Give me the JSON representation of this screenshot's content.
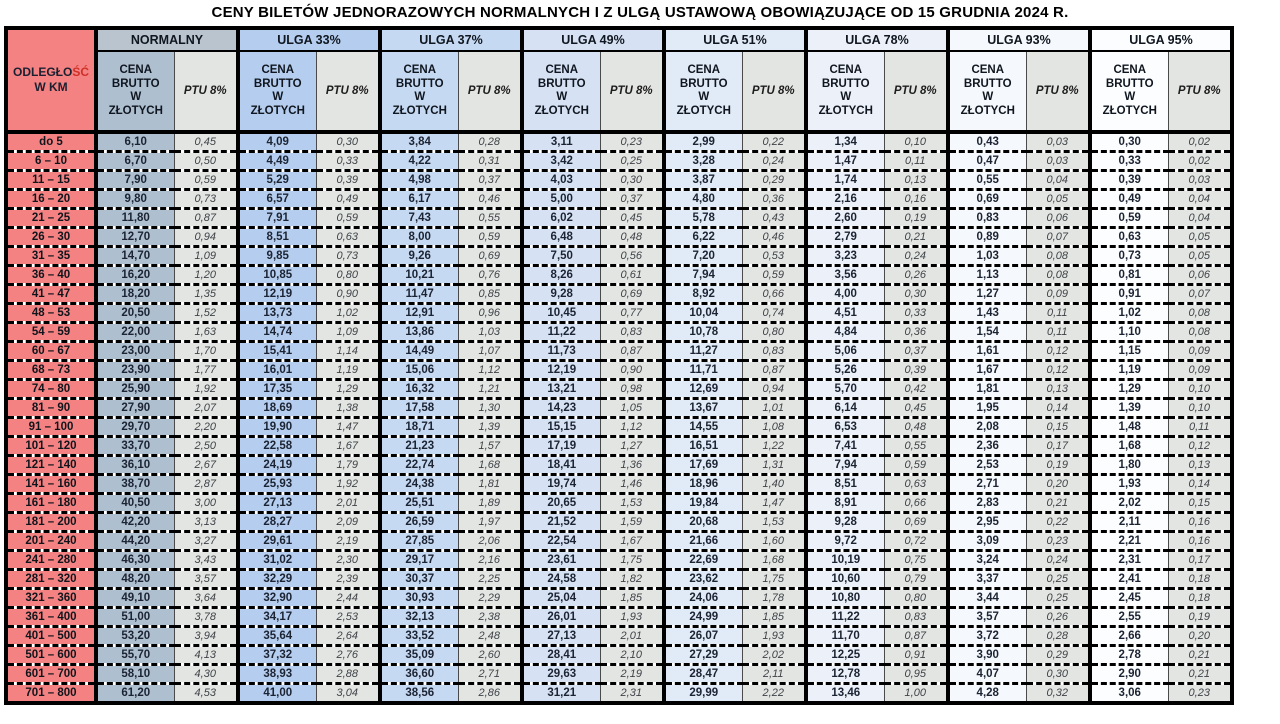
{
  "title": "CENY BILETÓW JEDNORAZOWYCH NORMALNYCH I Z ULGĄ USTAWOWĄ OBOWIĄZUJĄCE OD 15 GRUDNIA 2024 R.",
  "colors": {
    "distance_bg": "#f48282",
    "border": "#000000",
    "price_text": "#1c2433",
    "ptu_text": "#3f4348",
    "accent_red": "#d03028"
  },
  "table": {
    "distance_header": {
      "part1": "ODLEGŁO",
      "part2": "ŚĆ",
      "line2": "W KM"
    },
    "price_header": "CENA\nBRUTTO\nW\nZŁOTYCH",
    "ptu_header": "PTU 8%",
    "groups": [
      {
        "label": "NORMALNY",
        "header_bg": "#b9c4cf",
        "price_bg": "#aebfd0",
        "ptu_bg": "#e3e5e2"
      },
      {
        "label": "ULGA 33%",
        "header_bg": "#b5cdee",
        "price_bg": "#b5cdee",
        "ptu_bg": "#e3e5e2"
      },
      {
        "label": "ULGA 37%",
        "header_bg": "#c6d9f2",
        "price_bg": "#c6d9f2",
        "ptu_bg": "#e3e5e2"
      },
      {
        "label": "ULGA 49%",
        "header_bg": "#d6e2f4",
        "price_bg": "#d6e2f4",
        "ptu_bg": "#e3e5e2"
      },
      {
        "label": "ULGA 51%",
        "header_bg": "#e1eaf7",
        "price_bg": "#e1eaf7",
        "ptu_bg": "#e3e5e2"
      },
      {
        "label": "ULGA 78%",
        "header_bg": "#ecf1f9",
        "price_bg": "#ecf1f9",
        "ptu_bg": "#e3e5e2"
      },
      {
        "label": "ULGA 93%",
        "header_bg": "#f5f8fc",
        "price_bg": "#f5f8fc",
        "ptu_bg": "#e3e5e2"
      },
      {
        "label": "ULGA 95%",
        "header_bg": "#fcfdfe",
        "price_bg": "#fcfdfe",
        "ptu_bg": "#e3e5e2"
      }
    ],
    "rows": [
      {
        "d": "do 5",
        "v": [
          "6,10",
          "0,45",
          "4,09",
          "0,30",
          "3,84",
          "0,28",
          "3,11",
          "0,23",
          "2,99",
          "0,22",
          "1,34",
          "0,10",
          "0,43",
          "0,03",
          "0,30",
          "0,02"
        ]
      },
      {
        "d": "6 – 10",
        "v": [
          "6,70",
          "0,50",
          "4,49",
          "0,33",
          "4,22",
          "0,31",
          "3,42",
          "0,25",
          "3,28",
          "0,24",
          "1,47",
          "0,11",
          "0,47",
          "0,03",
          "0,33",
          "0,02"
        ]
      },
      {
        "d": "11 – 15",
        "v": [
          "7,90",
          "0,59",
          "5,29",
          "0,39",
          "4,98",
          "0,37",
          "4,03",
          "0,30",
          "3,87",
          "0,29",
          "1,74",
          "0,13",
          "0,55",
          "0,04",
          "0,39",
          "0,03"
        ]
      },
      {
        "d": "16 – 20",
        "v": [
          "9,80",
          "0,73",
          "6,57",
          "0,49",
          "6,17",
          "0,46",
          "5,00",
          "0,37",
          "4,80",
          "0,36",
          "2,16",
          "0,16",
          "0,69",
          "0,05",
          "0,49",
          "0,04"
        ]
      },
      {
        "d": "21 – 25",
        "v": [
          "11,80",
          "0,87",
          "7,91",
          "0,59",
          "7,43",
          "0,55",
          "6,02",
          "0,45",
          "5,78",
          "0,43",
          "2,60",
          "0,19",
          "0,83",
          "0,06",
          "0,59",
          "0,04"
        ]
      },
      {
        "d": "26 – 30",
        "v": [
          "12,70",
          "0,94",
          "8,51",
          "0,63",
          "8,00",
          "0,59",
          "6,48",
          "0,48",
          "6,22",
          "0,46",
          "2,79",
          "0,21",
          "0,89",
          "0,07",
          "0,63",
          "0,05"
        ]
      },
      {
        "d": "31 – 35",
        "v": [
          "14,70",
          "1,09",
          "9,85",
          "0,73",
          "9,26",
          "0,69",
          "7,50",
          "0,56",
          "7,20",
          "0,53",
          "3,23",
          "0,24",
          "1,03",
          "0,08",
          "0,73",
          "0,05"
        ]
      },
      {
        "d": "36 – 40",
        "v": [
          "16,20",
          "1,20",
          "10,85",
          "0,80",
          "10,21",
          "0,76",
          "8,26",
          "0,61",
          "7,94",
          "0,59",
          "3,56",
          "0,26",
          "1,13",
          "0,08",
          "0,81",
          "0,06"
        ]
      },
      {
        "d": "41 – 47",
        "v": [
          "18,20",
          "1,35",
          "12,19",
          "0,90",
          "11,47",
          "0,85",
          "9,28",
          "0,69",
          "8,92",
          "0,66",
          "4,00",
          "0,30",
          "1,27",
          "0,09",
          "0,91",
          "0,07"
        ]
      },
      {
        "d": "48 – 53",
        "v": [
          "20,50",
          "1,52",
          "13,73",
          "1,02",
          "12,91",
          "0,96",
          "10,45",
          "0,77",
          "10,04",
          "0,74",
          "4,51",
          "0,33",
          "1,43",
          "0,11",
          "1,02",
          "0,08"
        ]
      },
      {
        "d": "54 – 59",
        "v": [
          "22,00",
          "1,63",
          "14,74",
          "1,09",
          "13,86",
          "1,03",
          "11,22",
          "0,83",
          "10,78",
          "0,80",
          "4,84",
          "0,36",
          "1,54",
          "0,11",
          "1,10",
          "0,08"
        ]
      },
      {
        "d": "60 – 67",
        "v": [
          "23,00",
          "1,70",
          "15,41",
          "1,14",
          "14,49",
          "1,07",
          "11,73",
          "0,87",
          "11,27",
          "0,83",
          "5,06",
          "0,37",
          "1,61",
          "0,12",
          "1,15",
          "0,09"
        ]
      },
      {
        "d": "68 – 73",
        "v": [
          "23,90",
          "1,77",
          "16,01",
          "1,19",
          "15,06",
          "1,12",
          "12,19",
          "0,90",
          "11,71",
          "0,87",
          "5,26",
          "0,39",
          "1,67",
          "0,12",
          "1,19",
          "0,09"
        ]
      },
      {
        "d": "74 – 80",
        "v": [
          "25,90",
          "1,92",
          "17,35",
          "1,29",
          "16,32",
          "1,21",
          "13,21",
          "0,98",
          "12,69",
          "0,94",
          "5,70",
          "0,42",
          "1,81",
          "0,13",
          "1,29",
          "0,10"
        ]
      },
      {
        "d": "81 – 90",
        "v": [
          "27,90",
          "2,07",
          "18,69",
          "1,38",
          "17,58",
          "1,30",
          "14,23",
          "1,05",
          "13,67",
          "1,01",
          "6,14",
          "0,45",
          "1,95",
          "0,14",
          "1,39",
          "0,10"
        ]
      },
      {
        "d": "91 – 100",
        "v": [
          "29,70",
          "2,20",
          "19,90",
          "1,47",
          "18,71",
          "1,39",
          "15,15",
          "1,12",
          "14,55",
          "1,08",
          "6,53",
          "0,48",
          "2,08",
          "0,15",
          "1,48",
          "0,11"
        ]
      },
      {
        "d": "101 – 120",
        "v": [
          "33,70",
          "2,50",
          "22,58",
          "1,67",
          "21,23",
          "1,57",
          "17,19",
          "1,27",
          "16,51",
          "1,22",
          "7,41",
          "0,55",
          "2,36",
          "0,17",
          "1,68",
          "0,12"
        ]
      },
      {
        "d": "121 – 140",
        "v": [
          "36,10",
          "2,67",
          "24,19",
          "1,79",
          "22,74",
          "1,68",
          "18,41",
          "1,36",
          "17,69",
          "1,31",
          "7,94",
          "0,59",
          "2,53",
          "0,19",
          "1,80",
          "0,13"
        ]
      },
      {
        "d": "141 – 160",
        "v": [
          "38,70",
          "2,87",
          "25,93",
          "1,92",
          "24,38",
          "1,81",
          "19,74",
          "1,46",
          "18,96",
          "1,40",
          "8,51",
          "0,63",
          "2,71",
          "0,20",
          "1,93",
          "0,14"
        ]
      },
      {
        "d": "161 – 180",
        "v": [
          "40,50",
          "3,00",
          "27,13",
          "2,01",
          "25,51",
          "1,89",
          "20,65",
          "1,53",
          "19,84",
          "1,47",
          "8,91",
          "0,66",
          "2,83",
          "0,21",
          "2,02",
          "0,15"
        ]
      },
      {
        "d": "181 – 200",
        "v": [
          "42,20",
          "3,13",
          "28,27",
          "2,09",
          "26,59",
          "1,97",
          "21,52",
          "1,59",
          "20,68",
          "1,53",
          "9,28",
          "0,69",
          "2,95",
          "0,22",
          "2,11",
          "0,16"
        ]
      },
      {
        "d": "201 – 240",
        "v": [
          "44,20",
          "3,27",
          "29,61",
          "2,19",
          "27,85",
          "2,06",
          "22,54",
          "1,67",
          "21,66",
          "1,60",
          "9,72",
          "0,72",
          "3,09",
          "0,23",
          "2,21",
          "0,16"
        ]
      },
      {
        "d": "241 – 280",
        "v": [
          "46,30",
          "3,43",
          "31,02",
          "2,30",
          "29,17",
          "2,16",
          "23,61",
          "1,75",
          "22,69",
          "1,68",
          "10,19",
          "0,75",
          "3,24",
          "0,24",
          "2,31",
          "0,17"
        ]
      },
      {
        "d": "281 – 320",
        "v": [
          "48,20",
          "3,57",
          "32,29",
          "2,39",
          "30,37",
          "2,25",
          "24,58",
          "1,82",
          "23,62",
          "1,75",
          "10,60",
          "0,79",
          "3,37",
          "0,25",
          "2,41",
          "0,18"
        ]
      },
      {
        "d": "321 – 360",
        "v": [
          "49,10",
          "3,64",
          "32,90",
          "2,44",
          "30,93",
          "2,29",
          "25,04",
          "1,85",
          "24,06",
          "1,78",
          "10,80",
          "0,80",
          "3,44",
          "0,25",
          "2,45",
          "0,18"
        ]
      },
      {
        "d": "361 – 400",
        "v": [
          "51,00",
          "3,78",
          "34,17",
          "2,53",
          "32,13",
          "2,38",
          "26,01",
          "1,93",
          "24,99",
          "1,85",
          "11,22",
          "0,83",
          "3,57",
          "0,26",
          "2,55",
          "0,19"
        ]
      },
      {
        "d": "401 – 500",
        "v": [
          "53,20",
          "3,94",
          "35,64",
          "2,64",
          "33,52",
          "2,48",
          "27,13",
          "2,01",
          "26,07",
          "1,93",
          "11,70",
          "0,87",
          "3,72",
          "0,28",
          "2,66",
          "0,20"
        ]
      },
      {
        "d": "501 – 600",
        "v": [
          "55,70",
          "4,13",
          "37,32",
          "2,76",
          "35,09",
          "2,60",
          "28,41",
          "2,10",
          "27,29",
          "2,02",
          "12,25",
          "0,91",
          "3,90",
          "0,29",
          "2,78",
          "0,21"
        ]
      },
      {
        "d": "601 – 700",
        "v": [
          "58,10",
          "4,30",
          "38,93",
          "2,88",
          "36,60",
          "2,71",
          "29,63",
          "2,19",
          "28,47",
          "2,11",
          "12,78",
          "0,95",
          "4,07",
          "0,30",
          "2,90",
          "0,21"
        ]
      },
      {
        "d": "701 – 800",
        "v": [
          "61,20",
          "4,53",
          "41,00",
          "3,04",
          "38,56",
          "2,86",
          "31,21",
          "2,31",
          "29,99",
          "2,22",
          "13,46",
          "1,00",
          "4,28",
          "0,32",
          "3,06",
          "0,23"
        ]
      }
    ]
  }
}
